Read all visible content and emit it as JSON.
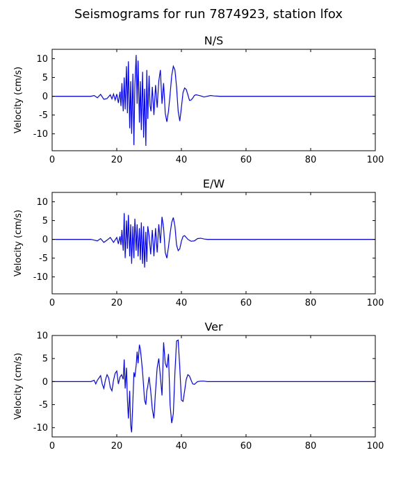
{
  "figure": {
    "title": "Seismograms for run 7874923, station lfox"
  },
  "chart_data": [
    {
      "type": "line",
      "title": "N/S",
      "xlabel": "",
      "ylabel": "Velocity (cm/s)",
      "xlim": [
        0,
        100
      ],
      "ylim": [
        -14.5,
        12.5
      ],
      "xticks": [
        0,
        20,
        40,
        60,
        80,
        100
      ],
      "yticks": [
        -10,
        -5,
        0,
        5,
        10
      ],
      "grid": false,
      "color": "#0000ff",
      "series": [
        {
          "x": [
            0,
            5,
            10,
            12,
            13,
            14,
            15,
            16,
            17,
            18,
            18.5,
            19,
            19.5,
            20,
            20.5,
            21,
            21.3,
            21.6,
            22,
            22.3,
            22.6,
            23,
            23.3,
            23.6,
            24,
            24.3,
            24.6,
            25,
            25.3,
            25.6,
            26,
            26.3,
            26.6,
            27,
            27.3,
            27.6,
            28,
            28.3,
            28.6,
            29,
            29.3,
            29.6,
            30,
            30.3,
            30.6,
            31,
            31.5,
            32,
            32.5,
            33,
            33.5,
            34,
            34.5,
            35,
            35.5,
            36,
            36.5,
            37,
            37.5,
            38,
            38.5,
            39,
            39.5,
            40,
            40.5,
            41,
            41.5,
            42,
            42.5,
            43,
            43.5,
            44,
            44.5,
            45,
            46,
            47,
            48,
            49,
            50,
            52,
            55,
            60,
            70,
            80,
            90,
            100
          ],
          "y": [
            0,
            0,
            0,
            0,
            0.2,
            -0.4,
            0.5,
            -0.8,
            -0.6,
            0.4,
            -0.7,
            0.6,
            -1.0,
            0.6,
            -1.8,
            1.2,
            -2.6,
            3.5,
            -4.0,
            5.0,
            -3.5,
            8.0,
            -4.5,
            9.3,
            -8.5,
            4.0,
            -10.0,
            6.0,
            -13.0,
            3.0,
            11.0,
            -2.0,
            9.5,
            -7.0,
            4.0,
            -9.0,
            6.5,
            -11.0,
            2.0,
            -13.2,
            7.0,
            -6.0,
            5.5,
            -2.5,
            -4.0,
            2.5,
            -5.0,
            3.0,
            -3.0,
            4.0,
            7.0,
            -2.0,
            3.5,
            -4.5,
            -6.8,
            -4.0,
            0.5,
            5.5,
            8.0,
            7.0,
            2.5,
            -4.0,
            -6.6,
            -3.0,
            1.0,
            2.2,
            1.8,
            0.4,
            -1.1,
            -1.0,
            -0.5,
            0.2,
            0.4,
            0.3,
            0.1,
            -0.2,
            0,
            0.2,
            0.1,
            0,
            0,
            0,
            0,
            0,
            0,
            0
          ]
        }
      ]
    },
    {
      "type": "line",
      "title": "E/W",
      "xlabel": "",
      "ylabel": "Velocity (cm/s)",
      "xlim": [
        0,
        100
      ],
      "ylim": [
        -14.5,
        12.5
      ],
      "xticks": [
        0,
        20,
        40,
        60,
        80,
        100
      ],
      "yticks": [
        -10,
        -5,
        0,
        5,
        10
      ],
      "grid": false,
      "color": "#0000ff",
      "series": [
        {
          "x": [
            0,
            5,
            10,
            12,
            13,
            14,
            15,
            16,
            17,
            18,
            19,
            20,
            20.5,
            21,
            21.3,
            21.6,
            22,
            22.3,
            22.6,
            23,
            23.3,
            23.6,
            24,
            24.3,
            24.6,
            25,
            25.3,
            25.6,
            26,
            26.3,
            26.6,
            27,
            27.3,
            27.6,
            28,
            28.3,
            28.6,
            29,
            29.3,
            29.6,
            30,
            30.5,
            31,
            31.5,
            32,
            32.5,
            33,
            33.5,
            34,
            34.5,
            35,
            35.5,
            36,
            36.5,
            37,
            37.5,
            38,
            38.5,
            39,
            39.5,
            40,
            40.5,
            41,
            41.5,
            42,
            43,
            44,
            45,
            46,
            47,
            48,
            50,
            55,
            60,
            70,
            80,
            90,
            100
          ],
          "y": [
            0,
            0,
            0,
            0,
            -0.2,
            -0.4,
            0.2,
            -0.8,
            -0.2,
            0.5,
            -0.8,
            0.5,
            -1.2,
            0.8,
            -1.5,
            2.5,
            -3.0,
            7.0,
            -5.0,
            5.0,
            -2.5,
            6.5,
            -4.5,
            4.0,
            -6.5,
            3.5,
            -5.0,
            5.5,
            -3.0,
            4.0,
            -4.5,
            3.0,
            -5.5,
            4.5,
            -6.5,
            3.5,
            -7.5,
            2.0,
            -6.0,
            3.5,
            1.0,
            -4.0,
            2.5,
            -4.5,
            3.0,
            -3.5,
            4.0,
            -1.0,
            6.0,
            3.0,
            -3.5,
            -5.0,
            -2.0,
            1.5,
            4.5,
            5.8,
            3.5,
            -1.5,
            -3.0,
            -2.5,
            -0.5,
            0.8,
            1.0,
            0.5,
            0,
            -0.5,
            -0.4,
            0.2,
            0.3,
            0.1,
            0,
            0,
            0,
            0,
            0,
            0,
            0,
            0
          ]
        }
      ]
    },
    {
      "type": "line",
      "title": "Ver",
      "xlabel": "",
      "ylabel": "Velocity (cm/s)",
      "xlim": [
        0,
        100
      ],
      "ylim": [
        -12,
        10
      ],
      "xticks": [
        0,
        20,
        40,
        60,
        80,
        100
      ],
      "yticks": [
        -10,
        -5,
        0,
        5,
        10
      ],
      "grid": false,
      "color": "#0000ff",
      "series": [
        {
          "x": [
            0,
            5,
            10,
            12,
            13,
            13.5,
            14,
            15,
            15.5,
            16,
            16.5,
            17,
            17.5,
            18,
            18.5,
            19,
            19.5,
            20,
            20.5,
            21,
            21.5,
            22,
            22.3,
            22.6,
            23,
            23.3,
            23.6,
            24,
            24.3,
            24.6,
            25,
            25.3,
            25.6,
            26,
            26.3,
            26.6,
            27,
            27.3,
            27.6,
            28,
            28.3,
            28.6,
            29,
            29.3,
            29.6,
            30,
            30.5,
            31,
            31.5,
            32,
            32.5,
            33,
            33.5,
            34,
            34.5,
            35,
            35.5,
            36,
            36.5,
            37,
            37.5,
            38,
            38.5,
            39,
            39.5,
            40,
            40.5,
            41,
            41.5,
            42,
            42.5,
            43,
            43.5,
            44,
            44.5,
            45,
            46,
            47,
            48,
            50,
            55,
            60,
            70,
            80,
            90,
            100
          ],
          "y": [
            0,
            0,
            0,
            0,
            0.3,
            -0.5,
            0.3,
            1.3,
            -0.5,
            -1.5,
            0.4,
            1.5,
            0.8,
            -1.3,
            -2.0,
            0.3,
            1.8,
            2.3,
            -0.5,
            1.0,
            1.5,
            0.5,
            4.8,
            -1.5,
            3.0,
            -4.0,
            -8.0,
            -2.0,
            -9.5,
            -11.0,
            -4.0,
            2.0,
            1.0,
            3.5,
            6.5,
            4.0,
            8.0,
            7.0,
            5.0,
            2.0,
            -1.0,
            -4.0,
            -5.0,
            -2.0,
            -1.0,
            1.0,
            -2.0,
            -6.0,
            -8.0,
            -2.0,
            3.0,
            5.0,
            1.0,
            -3.0,
            8.5,
            4.0,
            3.0,
            6.0,
            -5.0,
            -9.0,
            -7.0,
            2.0,
            8.8,
            9.0,
            3.0,
            -4.0,
            -4.3,
            -2.0,
            0.5,
            1.5,
            1.2,
            0.3,
            -0.5,
            -0.6,
            -0.3,
            0,
            0.1,
            0.1,
            0,
            0,
            0,
            0,
            0,
            0,
            0,
            0
          ]
        }
      ]
    }
  ]
}
